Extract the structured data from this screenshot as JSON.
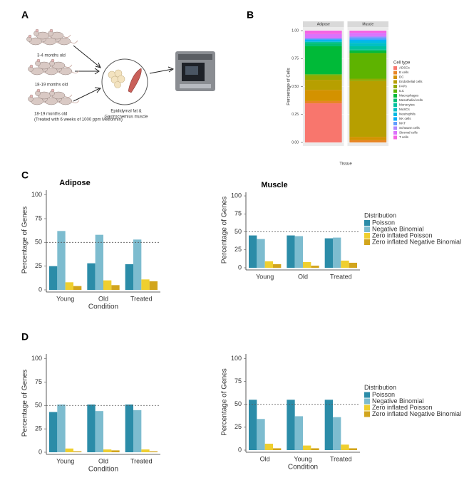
{
  "panels": {
    "labels": [
      "A",
      "B",
      "C",
      "D"
    ]
  },
  "diagram": {
    "groups": [
      "3-4 months old",
      "18-19 months old",
      "18-19 months old"
    ],
    "treatment": "(Treated with 6 weeks of 1000 ppm Metformin)",
    "tissue": [
      "Epididymal fat &",
      "Gastrocnemius muscle"
    ]
  },
  "chart_data": [
    {
      "type": "stacked_bar",
      "ylabel": "Percentage of Cells",
      "xlabel": "Tissue",
      "categories": [
        "Adipose",
        "Muscle"
      ],
      "ylim": [
        0,
        1
      ],
      "yticks": [
        {
          "value": 0,
          "label": "0.00"
        },
        {
          "value": 0.25,
          "label": "0.25"
        },
        {
          "value": 0.5,
          "label": "0.50"
        },
        {
          "value": 0.75,
          "label": "0.75"
        },
        {
          "value": 1,
          "label": "1.00"
        }
      ],
      "grid": true,
      "legend_title": "Cell type",
      "series": [
        {
          "name": "ADSCs",
          "color": "#F8766D",
          "values": [
            0.35,
            0
          ]
        },
        {
          "name": "B cells",
          "color": "#E88526",
          "values": [
            0.02,
            0.02
          ]
        },
        {
          "name": "DC",
          "color": "#D39200",
          "values": [
            0.1,
            0.03
          ]
        },
        {
          "name": "Endothelial cells",
          "color": "#B79F00",
          "values": [
            0.09,
            0.5
          ]
        },
        {
          "name": "FAPs",
          "color": "#93AA00",
          "values": [
            0.04,
            0.02
          ]
        },
        {
          "name": "ILC",
          "color": "#5EB300",
          "values": [
            0.01,
            0.23
          ]
        },
        {
          "name": "Macrophages",
          "color": "#00BA38",
          "values": [
            0.25,
            0.02
          ]
        },
        {
          "name": "Mesothelial cells",
          "color": "#00BF74",
          "values": [
            0.03,
            0.01
          ]
        },
        {
          "name": "Monocytes",
          "color": "#00C19F",
          "values": [
            0.01,
            0.03
          ]
        },
        {
          "name": "MuSCs",
          "color": "#00BFC4",
          "values": [
            0,
            0.03
          ]
        },
        {
          "name": "Neutrophils",
          "color": "#00B9E3",
          "values": [
            0.01,
            0.02
          ]
        },
        {
          "name": "NK cells",
          "color": "#00ADFA",
          "values": [
            0.01,
            0.01
          ]
        },
        {
          "name": "NKT",
          "color": "#619CFF",
          "values": [
            0.01,
            0.02
          ]
        },
        {
          "name": "Schwann cells",
          "color": "#AE87FF",
          "values": [
            0,
            0.01
          ]
        },
        {
          "name": "Stromal cells",
          "color": "#DB72FB",
          "values": [
            0.04,
            0.03
          ]
        },
        {
          "name": "T cells",
          "color": "#F564E3",
          "values": [
            0.03,
            0.02
          ]
        }
      ]
    },
    {
      "type": "bar",
      "title": "Adipose",
      "ylabel": "Percentage of Genes",
      "xlabel": "Condition",
      "categories": [
        "Young",
        "Old",
        "Treated"
      ],
      "ylim": [
        0,
        105
      ],
      "yticks": [
        0,
        25,
        50,
        75,
        100
      ],
      "hline": 50,
      "series": [
        {
          "color": "#2b8ca8",
          "values": [
            25,
            28,
            27
          ]
        },
        {
          "color": "#7dbccf",
          "values": [
            62,
            58,
            53
          ]
        },
        {
          "color": "#efcf2f",
          "values": [
            8,
            10,
            11
          ]
        },
        {
          "color": "#d2a51d",
          "values": [
            4,
            5,
            9
          ]
        }
      ]
    },
    {
      "type": "bar",
      "title": "Muscle",
      "ylabel": "Percentage of Genes",
      "categories": [
        "Young",
        "Old",
        "Treated"
      ],
      "ylim": [
        0,
        105
      ],
      "yticks": [
        0,
        25,
        50,
        75,
        100
      ],
      "hline": 50,
      "legend_title": "Distribution",
      "series": [
        {
          "name": "Poisson",
          "color": "#2b8ca8",
          "values": [
            45,
            45,
            41
          ]
        },
        {
          "name": "Negative Binomial",
          "color": "#7dbccf",
          "values": [
            40,
            44,
            42
          ]
        },
        {
          "name": "Zero inflated Poisson",
          "color": "#efcf2f",
          "values": [
            9,
            8,
            10
          ]
        },
        {
          "name": "Zero inflated Negative Binomial",
          "color": "#d2a51d",
          "values": [
            5,
            3,
            7
          ]
        }
      ]
    },
    {
      "type": "bar",
      "ylabel": "Percentage of Genes",
      "xlabel": "Condition",
      "categories": [
        "Young",
        "Old",
        "Treated"
      ],
      "ylim": [
        0,
        105
      ],
      "yticks": [
        0,
        25,
        50,
        75,
        100
      ],
      "hline": 50,
      "series": [
        {
          "color": "#2b8ca8",
          "values": [
            43,
            51,
            51
          ]
        },
        {
          "color": "#7dbccf",
          "values": [
            51,
            44,
            45
          ]
        },
        {
          "color": "#efcf2f",
          "values": [
            4,
            3,
            3
          ]
        },
        {
          "color": "#d2a51d",
          "values": [
            1,
            2,
            1
          ]
        }
      ]
    },
    {
      "type": "bar",
      "ylabel": "Percentage of Genes",
      "xlabel": "Condition",
      "categories": [
        "Old",
        "Young",
        "Treated"
      ],
      "ylim": [
        0,
        105
      ],
      "yticks": [
        0,
        25,
        50,
        75,
        100
      ],
      "hline": 50,
      "legend_title": "Distribution",
      "series": [
        {
          "name": "Poisson",
          "color": "#2b8ca8",
          "values": [
            55,
            55,
            55
          ]
        },
        {
          "name": "Negative Binomial",
          "color": "#7dbccf",
          "values": [
            34,
            37,
            36
          ]
        },
        {
          "name": "Zero inflated Poisson",
          "color": "#efcf2f",
          "values": [
            7,
            5,
            6
          ]
        },
        {
          "name": "Zero inflated Negative Binomial",
          "color": "#d2a51d",
          "values": [
            2,
            2,
            2
          ]
        }
      ]
    }
  ]
}
